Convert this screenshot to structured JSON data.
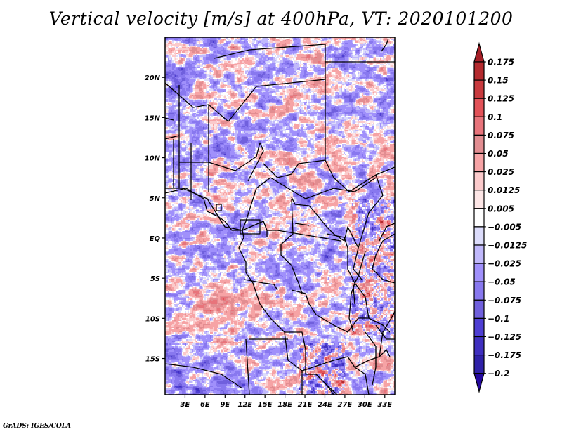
{
  "title": "Vertical velocity [m/s] at 400hPa, VT: 2020101200",
  "footer": "GrADS: IGES/COLA",
  "map": {
    "variable": "Vertical velocity",
    "units": "m/s",
    "level": "400hPa",
    "valid_time": "2020101200",
    "lon_range": [
      0,
      34.5
    ],
    "lat_range": [
      -19.5,
      25
    ],
    "lat_ticks": [
      {
        "value": 20,
        "label": "20N"
      },
      {
        "value": 15,
        "label": "15N"
      },
      {
        "value": 10,
        "label": "10N"
      },
      {
        "value": 5,
        "label": "5N"
      },
      {
        "value": 0,
        "label": "EQ"
      },
      {
        "value": -5,
        "label": "5S"
      },
      {
        "value": -10,
        "label": "10S"
      },
      {
        "value": -15,
        "label": "15S"
      }
    ],
    "lon_ticks": [
      {
        "value": 3,
        "label": "3E"
      },
      {
        "value": 6,
        "label": "6E"
      },
      {
        "value": 9,
        "label": "9E"
      },
      {
        "value": 12,
        "label": "12E"
      },
      {
        "value": 15,
        "label": "15E"
      },
      {
        "value": 18,
        "label": "18E"
      },
      {
        "value": 21,
        "label": "21E"
      },
      {
        "value": 24,
        "label": "24E"
      },
      {
        "value": 27,
        "label": "27E"
      },
      {
        "value": 30,
        "label": "30E"
      },
      {
        "value": 33,
        "label": "33E"
      }
    ]
  },
  "colorbar": {
    "levels": [
      {
        "label": "0.175"
      },
      {
        "label": "0.15"
      },
      {
        "label": "0.125"
      },
      {
        "label": "0.1"
      },
      {
        "label": "0.075"
      },
      {
        "label": "0.05"
      },
      {
        "label": "0.025"
      },
      {
        "label": "0.0125"
      },
      {
        "label": "0.005"
      },
      {
        "label": "−0.005"
      },
      {
        "label": "−0.0125"
      },
      {
        "label": "−0.025"
      },
      {
        "label": "−0.05"
      },
      {
        "label": "−0.075"
      },
      {
        "label": "−0.1"
      },
      {
        "label": "−0.125"
      },
      {
        "label": "−0.175"
      },
      {
        "label": "−0.2"
      }
    ],
    "level_values": [
      0.175,
      0.15,
      0.125,
      0.1,
      0.075,
      0.05,
      0.025,
      0.0125,
      0.005,
      -0.005,
      -0.0125,
      -0.025,
      -0.05,
      -0.075,
      -0.1,
      -0.125,
      -0.175,
      -0.2
    ],
    "colors_top_to_bottom": [
      "#a51f27",
      "#b42a2e",
      "#c83a3e",
      "#e25258",
      "#e8747b",
      "#e28d91",
      "#f6a3a5",
      "#fbcacb",
      "#fde6e6",
      "#ffffff",
      "#dcdcfb",
      "#c0b8fb",
      "#a090fb",
      "#8878ef",
      "#7060dd",
      "#4e3ed3",
      "#3f2fbf",
      "#2f21a8",
      "#24089e"
    ]
  }
}
